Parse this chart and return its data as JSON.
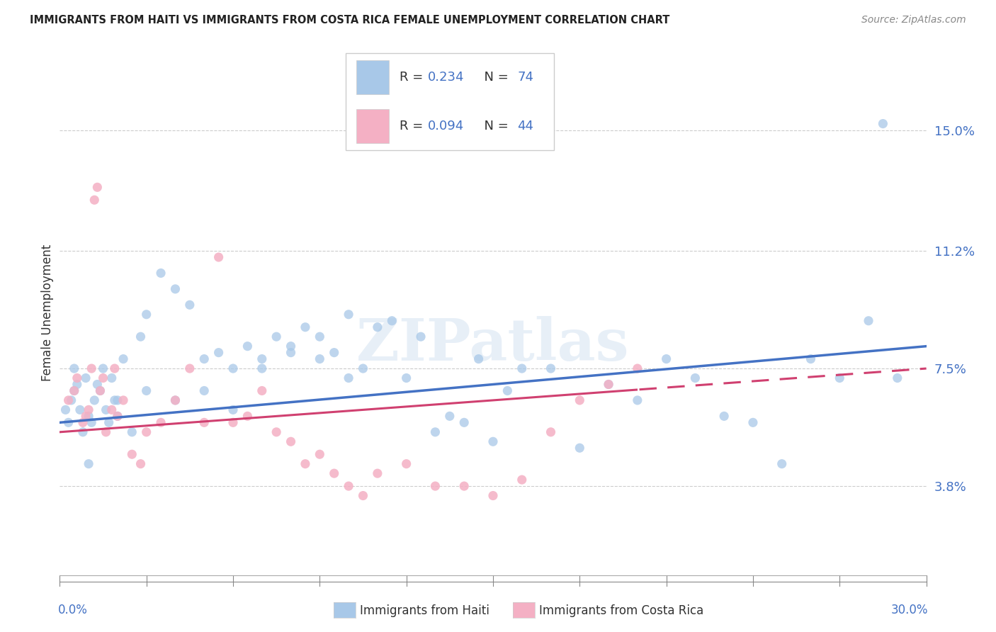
{
  "title": "IMMIGRANTS FROM HAITI VS IMMIGRANTS FROM COSTA RICA FEMALE UNEMPLOYMENT CORRELATION CHART",
  "source": "Source: ZipAtlas.com",
  "ylabel": "Female Unemployment",
  "ytick_labels": [
    "3.8%",
    "7.5%",
    "11.2%",
    "15.0%"
  ],
  "ytick_values": [
    3.8,
    7.5,
    11.2,
    15.0
  ],
  "xlim": [
    0.0,
    30.0
  ],
  "ylim": [
    1.0,
    17.5
  ],
  "haiti_color": "#a8c8e8",
  "haiti_line_color": "#4472c4",
  "cr_color": "#f4b0c4",
  "cr_line_color": "#d04070",
  "haiti_R": "0.234",
  "haiti_N": "74",
  "cr_R": "0.094",
  "cr_N": "44",
  "legend_label_haiti": "Immigrants from Haiti",
  "legend_label_cr": "Immigrants from Costa Rica",
  "watermark": "ZIPatlas",
  "grid_color": "#cccccc",
  "background_color": "#ffffff",
  "haiti_line_start_y": 5.8,
  "haiti_line_end_y": 8.2,
  "cr_line_start_y": 5.5,
  "cr_line_end_y": 7.5,
  "cr_dash_start_x": 20.0
}
